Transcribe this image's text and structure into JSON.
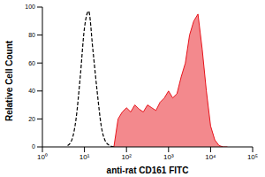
{
  "chart_data": {
    "type": "line",
    "x_label": "anti-rat CD161 FITC",
    "y_label": "Relative Cell Count",
    "log": "x",
    "grid": false,
    "xlim": [
      1,
      100000
    ],
    "xticks": [
      {
        "value": 1,
        "label": "10⁰"
      },
      {
        "value": 10,
        "label": "10¹"
      },
      {
        "value": 100,
        "label": "10²"
      },
      {
        "value": 1000,
        "label": "10³"
      },
      {
        "value": 10000,
        "label": "10⁴"
      },
      {
        "value": 100000,
        "label": "10⁵"
      }
    ],
    "ylim": [
      0,
      100
    ],
    "yticks": [
      0,
      20,
      40,
      60,
      80,
      100
    ],
    "x": [
      3.98,
      5.01,
      6.31,
      7.94,
      10,
      12.6,
      15.8,
      20,
      25.1,
      31.6,
      39.8,
      50.1,
      63.1,
      79.4,
      100,
      126,
      158,
      200,
      251,
      316,
      398,
      501,
      631,
      794,
      1000,
      1259,
      1585,
      1995,
      2512,
      3162,
      3981,
      5012,
      6310,
      7943,
      10000,
      12589,
      15849,
      19953,
      25119
    ],
    "series": [
      {
        "type": "line",
        "line_style": "dashed",
        "color": "#000000",
        "values": [
          1,
          5,
          20,
          50,
          85,
          97,
          70,
          40,
          15,
          4,
          1,
          0,
          null,
          null,
          null,
          null,
          null,
          null,
          null,
          null,
          null,
          null,
          null,
          null,
          null,
          null,
          null,
          null,
          null,
          null,
          null,
          null,
          null,
          null,
          null,
          null,
          null,
          null,
          null
        ]
      },
      {
        "type": "area",
        "color": "#e8131b",
        "values": [
          null,
          null,
          null,
          null,
          null,
          null,
          null,
          null,
          null,
          null,
          null,
          0,
          20,
          25,
          28,
          25,
          30,
          27,
          25,
          30,
          28,
          26,
          32,
          35,
          40,
          35,
          38,
          50,
          60,
          80,
          90,
          95,
          70,
          40,
          15,
          5,
          1,
          0,
          0
        ]
      }
    ]
  }
}
